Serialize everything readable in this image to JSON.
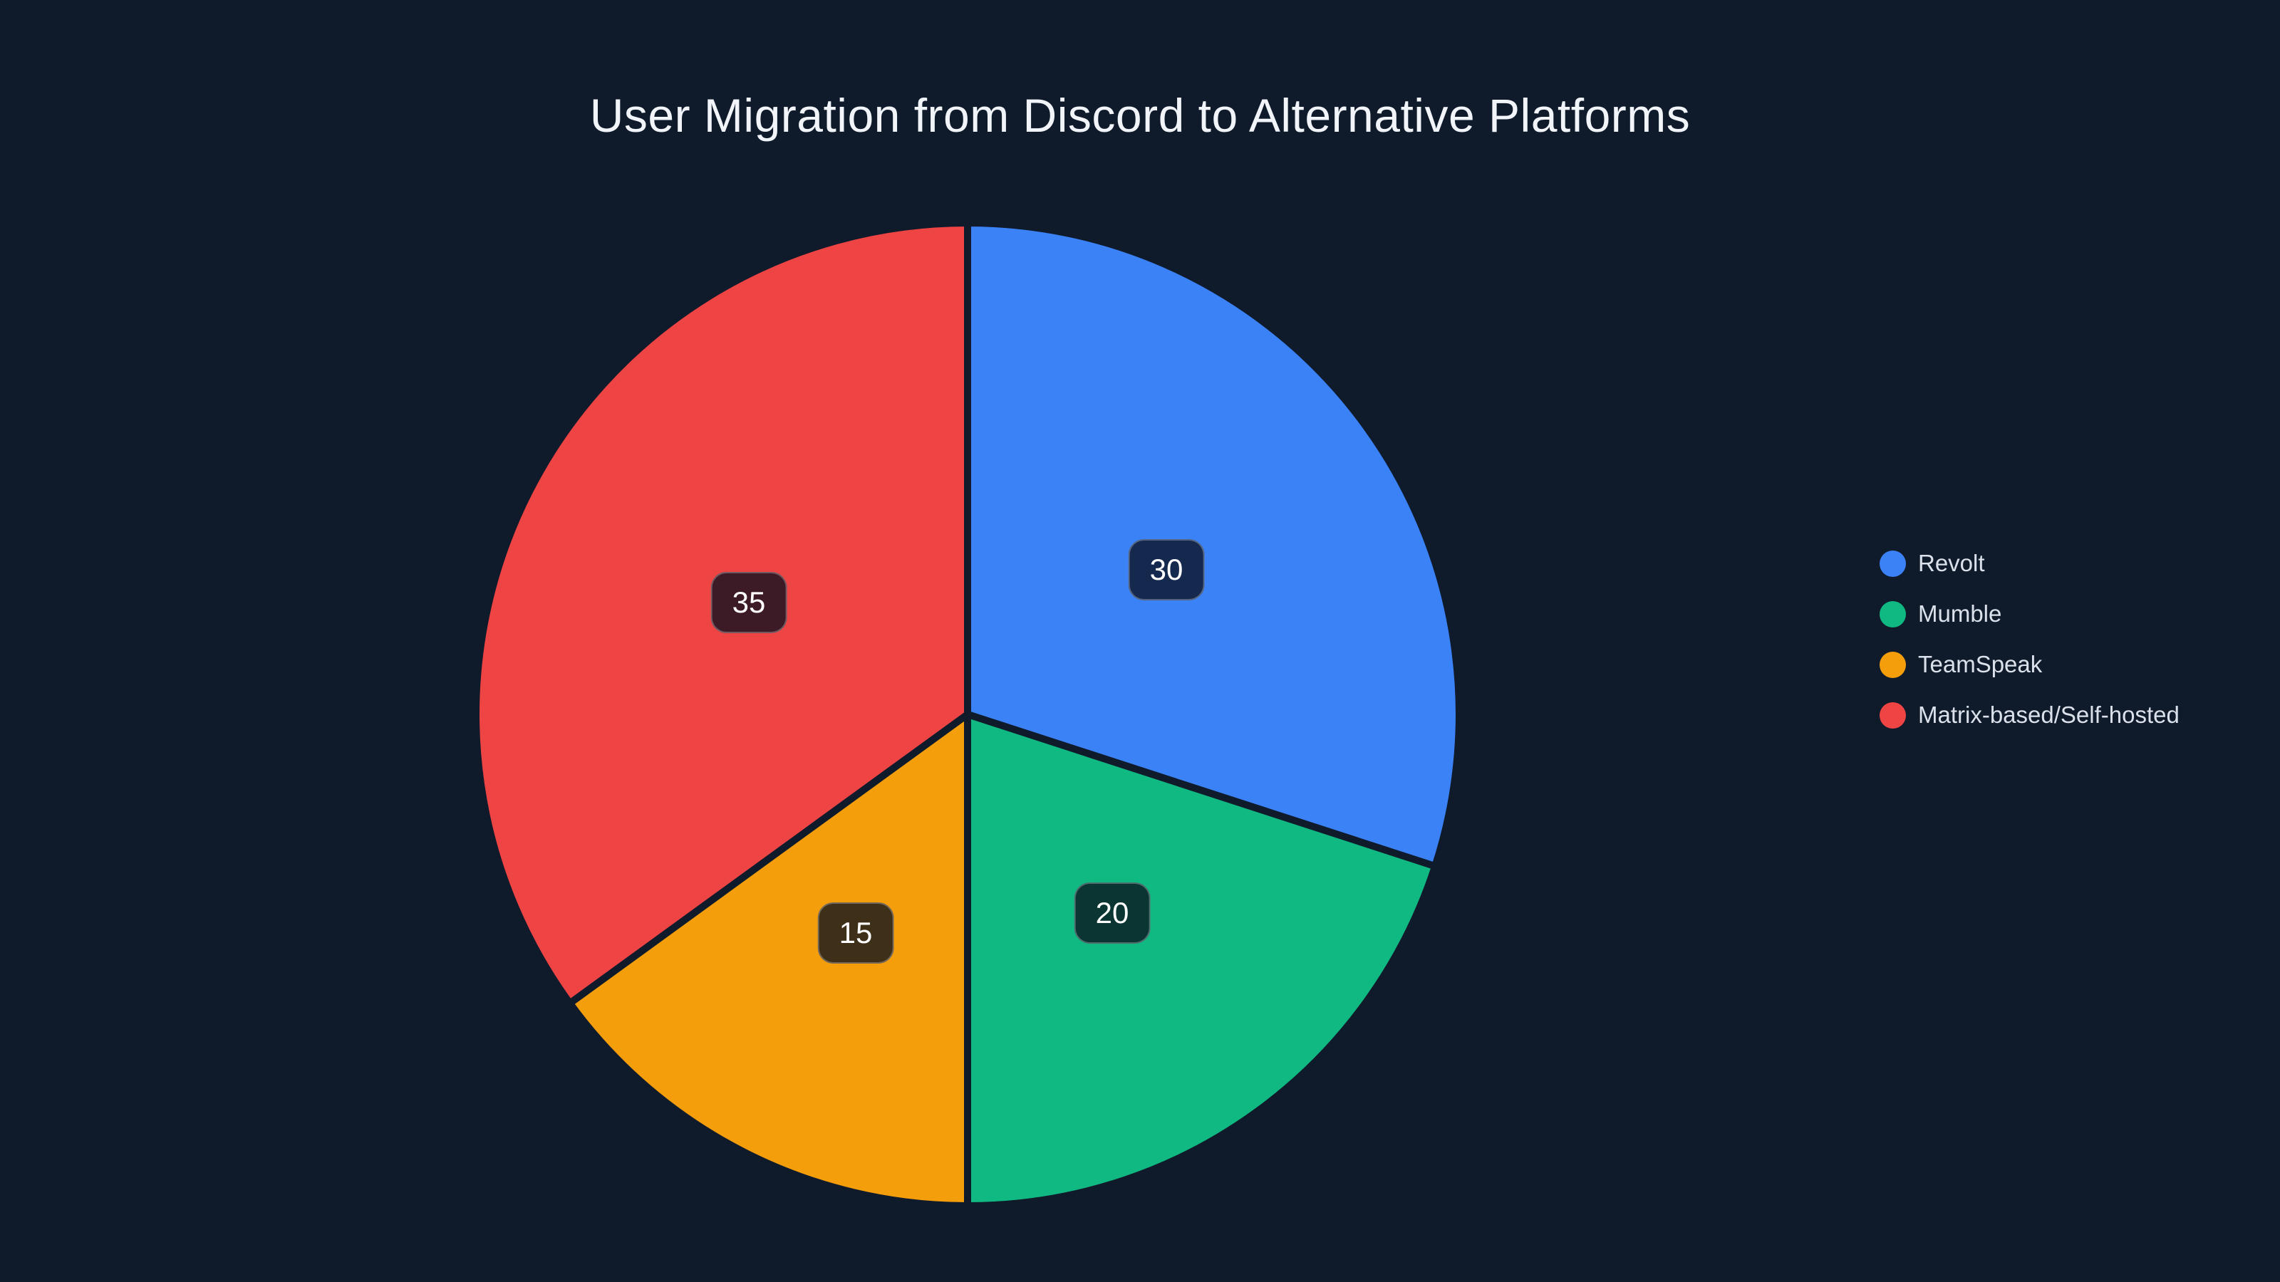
{
  "page": {
    "background": "#0f1a2b"
  },
  "title": {
    "text": "User Migration from Discord to Alternative Platforms",
    "color": "#f1f4f9"
  },
  "chart_data": {
    "type": "pie",
    "title": "User Migration from Discord to Alternative Platforms",
    "categories": [
      "Revolt",
      "Mumble",
      "TeamSpeak",
      "Matrix-based/Self-hosted"
    ],
    "values": [
      30,
      20,
      15,
      35
    ],
    "colors": [
      "#3b82f6",
      "#10b981",
      "#f59e0b",
      "#ef4444"
    ],
    "total": 100,
    "start_angle_deg": 0,
    "direction": "clockwise",
    "slice_order_clockwise_from_top": [
      "Revolt",
      "Mumble",
      "TeamSpeak",
      "Matrix-based/Self-hosted"
    ],
    "data_labels_shown": [
      "30",
      "20",
      "15",
      "35"
    ],
    "label_position": "inside",
    "legend_position": "middle-right",
    "grid": false
  },
  "legend": {
    "text_color": "#dbe1ea"
  },
  "value_label_style": {
    "background": "rgba(10, 16, 30, 0.78)",
    "border": "rgba(255, 255, 255, 0.28)",
    "text": "#ffffff"
  },
  "pie_style": {
    "slice_gap_color": "#0f1a2b"
  }
}
